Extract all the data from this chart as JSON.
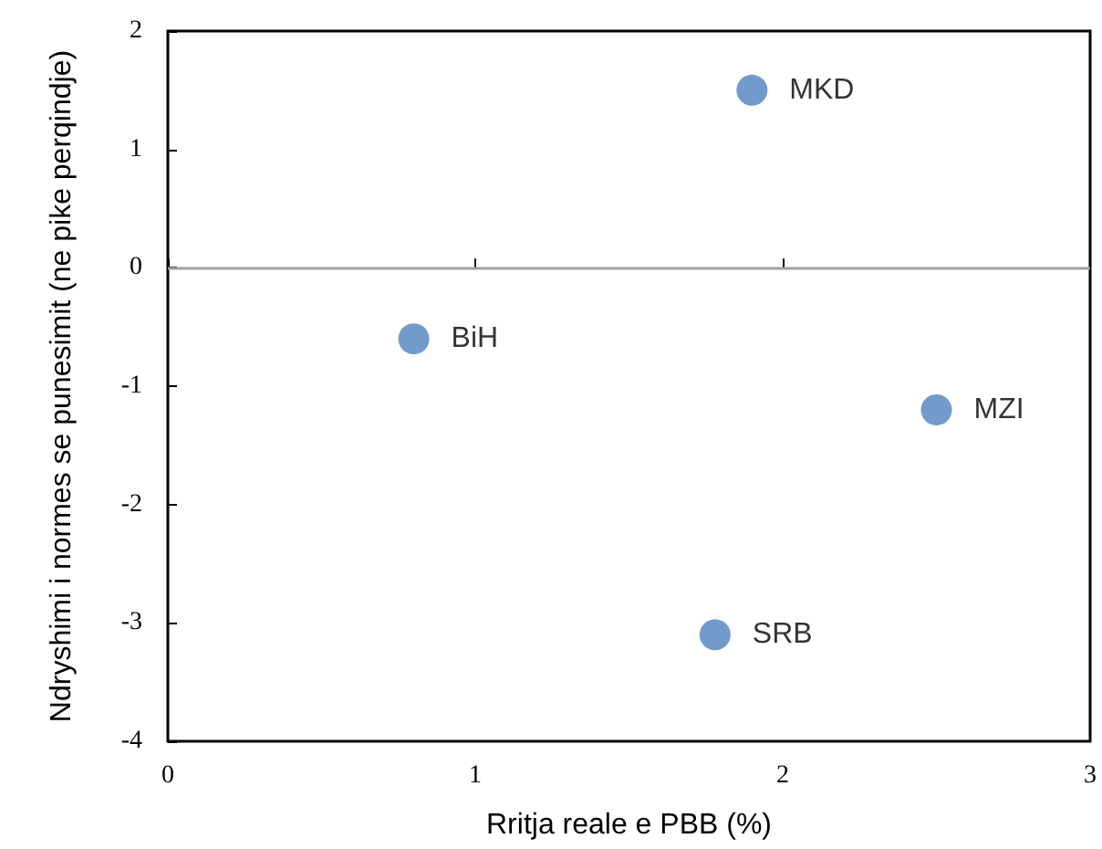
{
  "chart_data": {
    "type": "scatter",
    "xlabel": "Rritja reale e PBB (%)",
    "ylabel": "Ndryshimi i normes se punesimit (ne pike perqindje)",
    "series": [
      {
        "name": "MKD",
        "color": "#4f81bd",
        "x": [
          1.9
        ],
        "values": [
          1.5
        ]
      },
      {
        "name": "BiH",
        "color": "#4f81bd",
        "x": [
          0.8
        ],
        "values": [
          -0.6
        ]
      },
      {
        "name": "MZI",
        "color": "#4f81bd",
        "x": [
          2.5
        ],
        "values": [
          -1.2
        ]
      },
      {
        "name": "SRB",
        "color": "#4f81bd",
        "x": [
          1.78
        ],
        "values": [
          -3.1
        ]
      }
    ],
    "xlim": [
      0,
      3
    ],
    "xticks": [
      0,
      1,
      2,
      3
    ],
    "ylim": [
      -4,
      2
    ],
    "yticks": [
      -4,
      -3,
      -2,
      -1,
      0,
      1,
      2
    ],
    "ref_lines": [
      {
        "axis": "y",
        "value": 0,
        "color": "#a0a0a0"
      }
    ],
    "marker": "circle",
    "grid": false,
    "legend": false
  }
}
